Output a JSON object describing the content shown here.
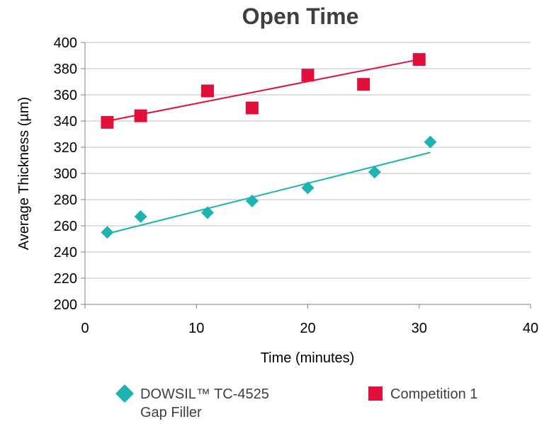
{
  "chart_data": {
    "type": "scatter",
    "title": "Open Time",
    "xlabel": "Time (minutes)",
    "ylabel": "Average Thickness (µm)",
    "xlim": [
      0,
      40
    ],
    "ylim": [
      200,
      400
    ],
    "xticks": [
      0,
      10,
      20,
      30,
      40
    ],
    "yticks": [
      200,
      220,
      240,
      260,
      280,
      300,
      320,
      340,
      360,
      380,
      400
    ],
    "grid": "horizontal",
    "legend_position": "bottom",
    "series": [
      {
        "name_lines": [
          "DOWSIL™ TC-4525",
          "Gap Filler"
        ],
        "marker": "diamond",
        "color": "#1fb3b0",
        "x": [
          2,
          5,
          11,
          15,
          20,
          26,
          31
        ],
        "y": [
          255,
          267,
          270,
          279,
          289,
          301,
          324
        ],
        "trendline": {
          "x": [
            2,
            31
          ],
          "y": [
            254,
            316
          ]
        }
      },
      {
        "name": "Competition 1",
        "marker": "square",
        "color": "#e0103a",
        "x": [
          2,
          5,
          11,
          15,
          20,
          25,
          30
        ],
        "y": [
          339,
          344,
          363,
          350,
          375,
          368,
          387
        ],
        "trendline": {
          "x": [
            2,
            30
          ],
          "y": [
            340,
            387
          ]
        }
      }
    ]
  }
}
